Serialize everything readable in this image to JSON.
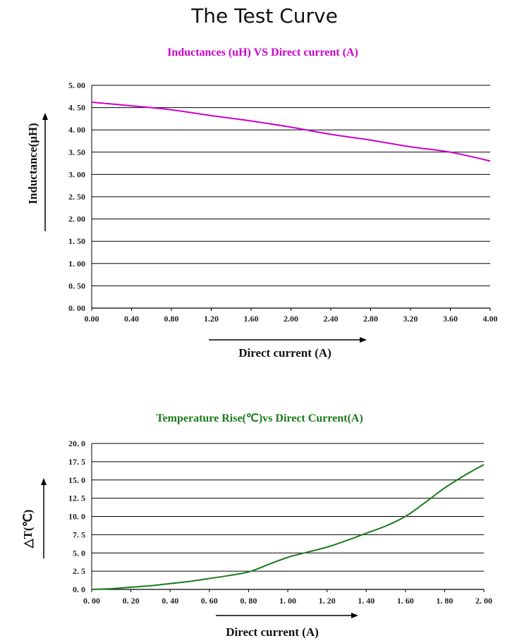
{
  "page_title": "The Test Curve",
  "chart_data": [
    {
      "type": "line",
      "title": "Inductances (uH) VS Direct current (A)",
      "title_color": "#CC00CC",
      "line_color": "#CC00CC",
      "xlabel": "Direct  current (A)",
      "ylabel": "Inductance(μH)",
      "xlim": [
        0,
        4
      ],
      "ylim": [
        0,
        5
      ],
      "x_ticks": [
        "0.00",
        "0.40",
        "0.80",
        "1.20",
        "1.60",
        "2.00",
        "2.40",
        "2.80",
        "3.20",
        "3.60",
        "4.00"
      ],
      "y_ticks": [
        "0. 00",
        "0. 50",
        "1. 00",
        "1. 50",
        "2. 00",
        "2. 50",
        "3. 00",
        "3. 50",
        "4. 00",
        "4. 50",
        "5. 00"
      ],
      "grid": true,
      "series": [
        {
          "name": "Inductance",
          "x": [
            0,
            0.4,
            0.8,
            1.2,
            1.6,
            2.0,
            2.4,
            2.8,
            3.2,
            3.6,
            4.0
          ],
          "values": [
            4.62,
            4.54,
            4.45,
            4.32,
            4.2,
            4.06,
            3.9,
            3.77,
            3.62,
            3.5,
            3.3
          ]
        }
      ]
    },
    {
      "type": "line",
      "title": "Temperature Rise(℃)vs Direct Current(A)",
      "title_color": "#1A7A1A",
      "line_color": "#1A7A1A",
      "xlabel": "Direct current (A)",
      "ylabel": "△T(℃)",
      "xlim": [
        0,
        2
      ],
      "ylim": [
        0,
        20
      ],
      "x_ticks": [
        "0. 00",
        "0. 20",
        "0. 40",
        "0. 60",
        "0. 80",
        "1. 00",
        "1. 20",
        "1. 40",
        "1. 60",
        "1. 80",
        "2. 00"
      ],
      "y_ticks": [
        "0. 0",
        "2. 5",
        "5. 0",
        "7. 5",
        "10. 0",
        "12. 5",
        "15. 0",
        "17. 5",
        "20. 0"
      ],
      "grid": true,
      "series": [
        {
          "name": "Temperature Rise",
          "x": [
            0,
            0.1,
            0.2,
            0.3,
            0.4,
            0.5,
            0.6,
            0.7,
            0.8,
            0.9,
            1.0,
            1.1,
            1.2,
            1.3,
            1.4,
            1.5,
            1.6,
            1.7,
            1.8,
            1.9,
            2.0
          ],
          "values": [
            0,
            0.1,
            0.3,
            0.5,
            0.8,
            1.1,
            1.5,
            1.9,
            2.4,
            3.4,
            4.4,
            5.1,
            5.8,
            6.7,
            7.7,
            8.7,
            10.0,
            11.9,
            13.9,
            15.6,
            17.1
          ]
        }
      ]
    }
  ]
}
